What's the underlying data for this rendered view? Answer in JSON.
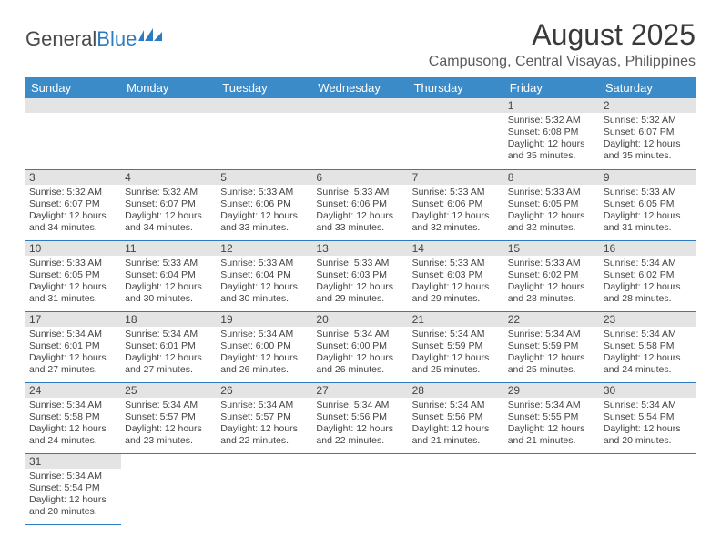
{
  "logo": {
    "text_a": "General",
    "text_b": "Blue"
  },
  "title": "August 2025",
  "location": "Campusong, Central Visayas, Philippines",
  "colors": {
    "header_bg": "#3b8bc9",
    "header_text": "#ffffff",
    "cell_border": "#2d7bc0",
    "daynum_bg": "#e4e4e4",
    "logo_blue": "#2d7bc0"
  },
  "day_headers": [
    "Sunday",
    "Monday",
    "Tuesday",
    "Wednesday",
    "Thursday",
    "Friday",
    "Saturday"
  ],
  "weeks": [
    [
      {
        "empty": true
      },
      {
        "empty": true
      },
      {
        "empty": true
      },
      {
        "empty": true
      },
      {
        "empty": true
      },
      {
        "day": "1",
        "sunrise": "Sunrise: 5:32 AM",
        "sunset": "Sunset: 6:08 PM",
        "daylight": "Daylight: 12 hours and 35 minutes."
      },
      {
        "day": "2",
        "sunrise": "Sunrise: 5:32 AM",
        "sunset": "Sunset: 6:07 PM",
        "daylight": "Daylight: 12 hours and 35 minutes."
      }
    ],
    [
      {
        "day": "3",
        "sunrise": "Sunrise: 5:32 AM",
        "sunset": "Sunset: 6:07 PM",
        "daylight": "Daylight: 12 hours and 34 minutes."
      },
      {
        "day": "4",
        "sunrise": "Sunrise: 5:32 AM",
        "sunset": "Sunset: 6:07 PM",
        "daylight": "Daylight: 12 hours and 34 minutes."
      },
      {
        "day": "5",
        "sunrise": "Sunrise: 5:33 AM",
        "sunset": "Sunset: 6:06 PM",
        "daylight": "Daylight: 12 hours and 33 minutes."
      },
      {
        "day": "6",
        "sunrise": "Sunrise: 5:33 AM",
        "sunset": "Sunset: 6:06 PM",
        "daylight": "Daylight: 12 hours and 33 minutes."
      },
      {
        "day": "7",
        "sunrise": "Sunrise: 5:33 AM",
        "sunset": "Sunset: 6:06 PM",
        "daylight": "Daylight: 12 hours and 32 minutes."
      },
      {
        "day": "8",
        "sunrise": "Sunrise: 5:33 AM",
        "sunset": "Sunset: 6:05 PM",
        "daylight": "Daylight: 12 hours and 32 minutes."
      },
      {
        "day": "9",
        "sunrise": "Sunrise: 5:33 AM",
        "sunset": "Sunset: 6:05 PM",
        "daylight": "Daylight: 12 hours and 31 minutes."
      }
    ],
    [
      {
        "day": "10",
        "sunrise": "Sunrise: 5:33 AM",
        "sunset": "Sunset: 6:05 PM",
        "daylight": "Daylight: 12 hours and 31 minutes."
      },
      {
        "day": "11",
        "sunrise": "Sunrise: 5:33 AM",
        "sunset": "Sunset: 6:04 PM",
        "daylight": "Daylight: 12 hours and 30 minutes."
      },
      {
        "day": "12",
        "sunrise": "Sunrise: 5:33 AM",
        "sunset": "Sunset: 6:04 PM",
        "daylight": "Daylight: 12 hours and 30 minutes."
      },
      {
        "day": "13",
        "sunrise": "Sunrise: 5:33 AM",
        "sunset": "Sunset: 6:03 PM",
        "daylight": "Daylight: 12 hours and 29 minutes."
      },
      {
        "day": "14",
        "sunrise": "Sunrise: 5:33 AM",
        "sunset": "Sunset: 6:03 PM",
        "daylight": "Daylight: 12 hours and 29 minutes."
      },
      {
        "day": "15",
        "sunrise": "Sunrise: 5:33 AM",
        "sunset": "Sunset: 6:02 PM",
        "daylight": "Daylight: 12 hours and 28 minutes."
      },
      {
        "day": "16",
        "sunrise": "Sunrise: 5:34 AM",
        "sunset": "Sunset: 6:02 PM",
        "daylight": "Daylight: 12 hours and 28 minutes."
      }
    ],
    [
      {
        "day": "17",
        "sunrise": "Sunrise: 5:34 AM",
        "sunset": "Sunset: 6:01 PM",
        "daylight": "Daylight: 12 hours and 27 minutes."
      },
      {
        "day": "18",
        "sunrise": "Sunrise: 5:34 AM",
        "sunset": "Sunset: 6:01 PM",
        "daylight": "Daylight: 12 hours and 27 minutes."
      },
      {
        "day": "19",
        "sunrise": "Sunrise: 5:34 AM",
        "sunset": "Sunset: 6:00 PM",
        "daylight": "Daylight: 12 hours and 26 minutes."
      },
      {
        "day": "20",
        "sunrise": "Sunrise: 5:34 AM",
        "sunset": "Sunset: 6:00 PM",
        "daylight": "Daylight: 12 hours and 26 minutes."
      },
      {
        "day": "21",
        "sunrise": "Sunrise: 5:34 AM",
        "sunset": "Sunset: 5:59 PM",
        "daylight": "Daylight: 12 hours and 25 minutes."
      },
      {
        "day": "22",
        "sunrise": "Sunrise: 5:34 AM",
        "sunset": "Sunset: 5:59 PM",
        "daylight": "Daylight: 12 hours and 25 minutes."
      },
      {
        "day": "23",
        "sunrise": "Sunrise: 5:34 AM",
        "sunset": "Sunset: 5:58 PM",
        "daylight": "Daylight: 12 hours and 24 minutes."
      }
    ],
    [
      {
        "day": "24",
        "sunrise": "Sunrise: 5:34 AM",
        "sunset": "Sunset: 5:58 PM",
        "daylight": "Daylight: 12 hours and 24 minutes."
      },
      {
        "day": "25",
        "sunrise": "Sunrise: 5:34 AM",
        "sunset": "Sunset: 5:57 PM",
        "daylight": "Daylight: 12 hours and 23 minutes."
      },
      {
        "day": "26",
        "sunrise": "Sunrise: 5:34 AM",
        "sunset": "Sunset: 5:57 PM",
        "daylight": "Daylight: 12 hours and 22 minutes."
      },
      {
        "day": "27",
        "sunrise": "Sunrise: 5:34 AM",
        "sunset": "Sunset: 5:56 PM",
        "daylight": "Daylight: 12 hours and 22 minutes."
      },
      {
        "day": "28",
        "sunrise": "Sunrise: 5:34 AM",
        "sunset": "Sunset: 5:56 PM",
        "daylight": "Daylight: 12 hours and 21 minutes."
      },
      {
        "day": "29",
        "sunrise": "Sunrise: 5:34 AM",
        "sunset": "Sunset: 5:55 PM",
        "daylight": "Daylight: 12 hours and 21 minutes."
      },
      {
        "day": "30",
        "sunrise": "Sunrise: 5:34 AM",
        "sunset": "Sunset: 5:54 PM",
        "daylight": "Daylight: 12 hours and 20 minutes."
      }
    ],
    [
      {
        "day": "31",
        "sunrise": "Sunrise: 5:34 AM",
        "sunset": "Sunset: 5:54 PM",
        "daylight": "Daylight: 12 hours and 20 minutes."
      },
      {
        "empty": true
      },
      {
        "empty": true
      },
      {
        "empty": true
      },
      {
        "empty": true
      },
      {
        "empty": true
      },
      {
        "empty": true
      }
    ]
  ]
}
